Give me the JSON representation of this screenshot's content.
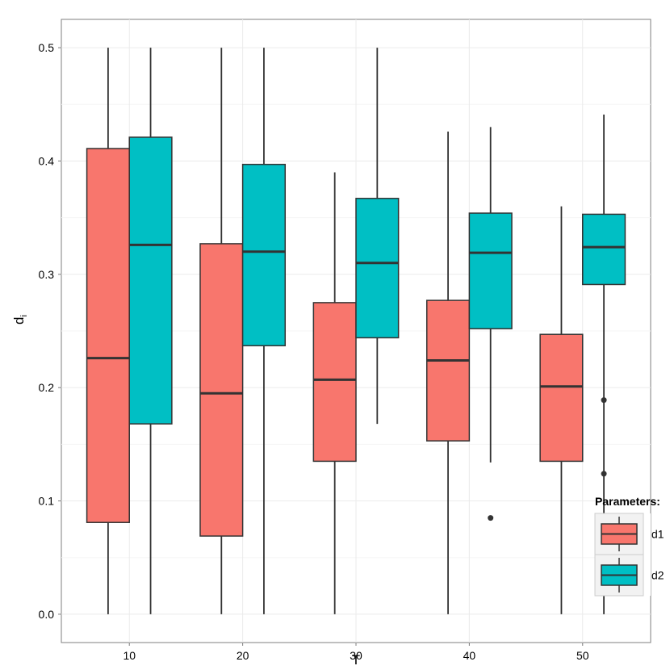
{
  "chart_data": {
    "type": "boxplot",
    "title": "",
    "xlabel": "T",
    "ylabel_main": "d",
    "ylabel_sub": "i",
    "categories": [
      "10",
      "20",
      "30",
      "40",
      "50"
    ],
    "ylim": [
      -0.025,
      0.525
    ],
    "yticks": [
      "0.0",
      "0.1",
      "0.2",
      "0.3",
      "0.4",
      "0.5"
    ],
    "grid": true,
    "legend": {
      "title": "Parameters:",
      "position": "bottom-right",
      "entries": [
        {
          "name": "d1",
          "color": "#F8766D"
        },
        {
          "name": "d2",
          "color": "#00BFC4"
        }
      ]
    },
    "series": [
      {
        "name": "d1",
        "color": "#F8766D",
        "boxes": [
          {
            "category": "10",
            "min": 0.0,
            "q1": 0.081,
            "median": 0.226,
            "q3": 0.411,
            "max": 0.5,
            "outliers": []
          },
          {
            "category": "20",
            "min": 0.0,
            "q1": 0.069,
            "median": 0.195,
            "q3": 0.327,
            "max": 0.5,
            "outliers": []
          },
          {
            "category": "30",
            "min": 0.0,
            "q1": 0.135,
            "median": 0.207,
            "q3": 0.275,
            "max": 0.39,
            "outliers": []
          },
          {
            "category": "40",
            "min": 0.0,
            "q1": 0.153,
            "median": 0.224,
            "q3": 0.277,
            "max": 0.426,
            "outliers": []
          },
          {
            "category": "50",
            "min": 0.0,
            "q1": 0.135,
            "median": 0.201,
            "q3": 0.247,
            "max": 0.36,
            "outliers": []
          }
        ]
      },
      {
        "name": "d2",
        "color": "#00BFC4",
        "boxes": [
          {
            "category": "10",
            "min": 0.0,
            "q1": 0.168,
            "median": 0.326,
            "q3": 0.421,
            "max": 0.5,
            "outliers": []
          },
          {
            "category": "20",
            "min": 0.0,
            "q1": 0.237,
            "median": 0.32,
            "q3": 0.397,
            "max": 0.5,
            "outliers": []
          },
          {
            "category": "30",
            "min": 0.168,
            "q1": 0.244,
            "median": 0.31,
            "q3": 0.367,
            "max": 0.5,
            "outliers": []
          },
          {
            "category": "40",
            "min": 0.134,
            "q1": 0.252,
            "median": 0.319,
            "q3": 0.354,
            "max": 0.43,
            "outliers": [
              0.085
            ]
          },
          {
            "category": "50",
            "min": 0.0,
            "q1": 0.291,
            "median": 0.324,
            "q3": 0.353,
            "max": 0.441,
            "outliers": [
              0.189,
              0.124
            ]
          }
        ]
      }
    ]
  }
}
